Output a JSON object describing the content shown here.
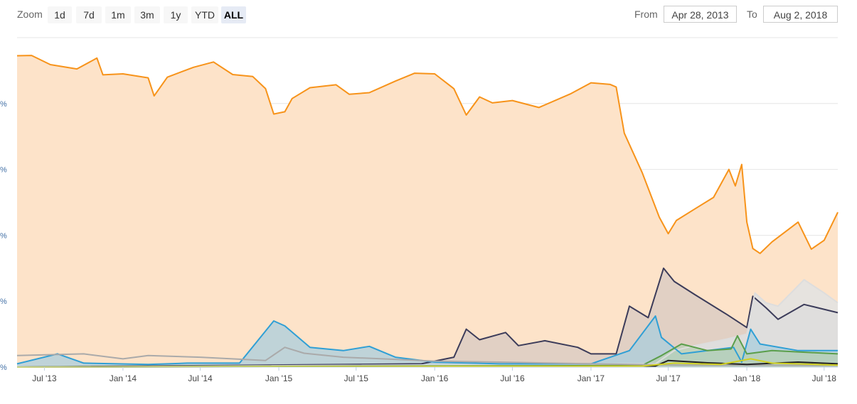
{
  "toolbar": {
    "zoom_label": "Zoom",
    "buttons": [
      "1d",
      "7d",
      "1m",
      "3m",
      "1y",
      "YTD",
      "ALL"
    ],
    "active_button": "ALL",
    "from_label": "From",
    "from_value": "Apr 28, 2013",
    "to_label": "To",
    "to_value": "Aug 2, 2018"
  },
  "chart_data": {
    "type": "area",
    "title": "",
    "xlabel": "",
    "ylabel": "",
    "xlim": [
      "2013-04-28",
      "2018-08-02"
    ],
    "ylim": [
      0,
      100
    ],
    "y_tick_labels": [
      "%",
      "%",
      "%",
      "%",
      "%"
    ],
    "x_tick_labels": [
      "Jul '13",
      "Jan '14",
      "Jul '14",
      "Jan '15",
      "Jul '15",
      "Jan '16",
      "Jul '16",
      "Jan '17",
      "Jul '17",
      "Jan '18",
      "Jul '18"
    ],
    "x_tick_dates": [
      "2013-07-01",
      "2014-01-01",
      "2014-07-01",
      "2015-01-01",
      "2015-07-01",
      "2016-01-01",
      "2016-07-01",
      "2017-01-01",
      "2017-07-01",
      "2018-01-01",
      "2018-07-01"
    ],
    "grid": true,
    "legend": "none",
    "series": [
      {
        "color": "#f7931a",
        "fill": "#fde3c9",
        "points": [
          [
            "2013-04-28",
            94.5
          ],
          [
            "2013-06-01",
            94.6
          ],
          [
            "2013-07-15",
            91.8
          ],
          [
            "2013-09-15",
            90.5
          ],
          [
            "2013-11-01",
            93.8
          ],
          [
            "2013-11-15",
            88.7
          ],
          [
            "2014-01-01",
            89.0
          ],
          [
            "2014-03-01",
            87.8
          ],
          [
            "2014-03-15",
            82.3
          ],
          [
            "2014-04-15",
            88.0
          ],
          [
            "2014-06-15",
            91.0
          ],
          [
            "2014-08-01",
            92.6
          ],
          [
            "2014-09-15",
            88.8
          ],
          [
            "2014-11-01",
            88.2
          ],
          [
            "2014-12-01",
            84.5
          ],
          [
            "2014-12-20",
            76.8
          ],
          [
            "2015-01-15",
            77.5
          ],
          [
            "2015-02-01",
            81.5
          ],
          [
            "2015-03-15",
            84.8
          ],
          [
            "2015-05-15",
            85.7
          ],
          [
            "2015-06-15",
            82.8
          ],
          [
            "2015-08-01",
            83.3
          ],
          [
            "2015-10-01",
            86.8
          ],
          [
            "2015-11-15",
            89.2
          ],
          [
            "2016-01-01",
            89.0
          ],
          [
            "2016-02-15",
            84.5
          ],
          [
            "2016-03-15",
            76.5
          ],
          [
            "2016-04-15",
            82.0
          ],
          [
            "2016-05-15",
            80.2
          ],
          [
            "2016-07-01",
            80.9
          ],
          [
            "2016-09-01",
            78.8
          ],
          [
            "2016-11-15",
            83.0
          ],
          [
            "2017-01-01",
            86.3
          ],
          [
            "2017-02-15",
            85.8
          ],
          [
            "2017-03-01",
            85.0
          ],
          [
            "2017-03-20",
            71.0
          ],
          [
            "2017-05-01",
            59.0
          ],
          [
            "2017-06-10",
            45.5
          ],
          [
            "2017-07-01",
            40.5
          ],
          [
            "2017-07-20",
            44.5
          ],
          [
            "2017-09-01",
            48.0
          ],
          [
            "2017-10-15",
            51.5
          ],
          [
            "2017-11-20",
            60.0
          ],
          [
            "2017-12-05",
            55.0
          ],
          [
            "2017-12-20",
            61.5
          ],
          [
            "2018-01-01",
            44.0
          ],
          [
            "2018-01-15",
            36.0
          ],
          [
            "2018-02-01",
            34.5
          ],
          [
            "2018-03-01",
            38.0
          ],
          [
            "2018-05-01",
            44.0
          ],
          [
            "2018-06-01",
            35.8
          ],
          [
            "2018-07-01",
            38.5
          ],
          [
            "2018-08-02",
            47.0
          ]
        ]
      },
      {
        "color": "#3c3c5a",
        "fill": "#d7c9c1",
        "points": [
          [
            "2013-04-28",
            0
          ],
          [
            "2015-12-01",
            1.0
          ],
          [
            "2016-02-15",
            3.0
          ],
          [
            "2016-03-15",
            11.5
          ],
          [
            "2016-04-15",
            8.3
          ],
          [
            "2016-06-15",
            10.5
          ],
          [
            "2016-07-15",
            6.5
          ],
          [
            "2016-09-15",
            8.0
          ],
          [
            "2016-12-01",
            6.0
          ],
          [
            "2017-01-01",
            4.0
          ],
          [
            "2017-03-01",
            4.0
          ],
          [
            "2017-04-01",
            18.5
          ],
          [
            "2017-05-15",
            15.0
          ],
          [
            "2017-06-20",
            30.0
          ],
          [
            "2017-07-15",
            26.0
          ],
          [
            "2017-09-01",
            22.0
          ],
          [
            "2017-11-15",
            16.0
          ],
          [
            "2018-01-01",
            12.0
          ],
          [
            "2018-01-15",
            21.5
          ],
          [
            "2018-02-15",
            18.0
          ],
          [
            "2018-03-15",
            14.5
          ],
          [
            "2018-05-15",
            19.0
          ],
          [
            "2018-08-02",
            16.5
          ]
        ]
      },
      {
        "color": "#dddddd",
        "fill": "#dde3e6",
        "points": [
          [
            "2013-04-28",
            0
          ],
          [
            "2017-06-01",
            1.0
          ],
          [
            "2017-07-15",
            5.0
          ],
          [
            "2017-09-01",
            6.5
          ],
          [
            "2017-11-15",
            8.5
          ],
          [
            "2018-01-01",
            10.0
          ],
          [
            "2018-01-20",
            22.5
          ],
          [
            "2018-02-15",
            19.5
          ],
          [
            "2018-03-15",
            18.5
          ],
          [
            "2018-05-15",
            26.5
          ],
          [
            "2018-07-01",
            22.5
          ],
          [
            "2018-08-02",
            19.5
          ]
        ]
      },
      {
        "color": "#2f9fd5",
        "fill": "#a9cddc",
        "points": [
          [
            "2013-04-28",
            1.0
          ],
          [
            "2013-08-01",
            4.0
          ],
          [
            "2013-10-01",
            1.2
          ],
          [
            "2014-03-01",
            0.8
          ],
          [
            "2014-06-01",
            1.2
          ],
          [
            "2014-10-01",
            1.2
          ],
          [
            "2014-12-20",
            14.0
          ],
          [
            "2015-01-15",
            12.5
          ],
          [
            "2015-03-15",
            6.0
          ],
          [
            "2015-06-01",
            5.0
          ],
          [
            "2015-08-01",
            6.3
          ],
          [
            "2015-10-01",
            3.0
          ],
          [
            "2016-01-01",
            1.5
          ],
          [
            "2016-06-01",
            1.0
          ],
          [
            "2017-01-01",
            1.0
          ],
          [
            "2017-04-01",
            5.0
          ],
          [
            "2017-06-01",
            15.5
          ],
          [
            "2017-06-15",
            9.0
          ],
          [
            "2017-08-01",
            4.0
          ],
          [
            "2017-10-01",
            5.0
          ],
          [
            "2017-12-01",
            6.0
          ],
          [
            "2017-12-20",
            1.5
          ],
          [
            "2018-01-10",
            11.5
          ],
          [
            "2018-02-01",
            7.0
          ],
          [
            "2018-05-01",
            5.0
          ],
          [
            "2018-08-02",
            5.0
          ]
        ]
      },
      {
        "color": "#5a9e4a",
        "fill": "#b7cfb1",
        "points": [
          [
            "2013-04-28",
            0
          ],
          [
            "2017-05-01",
            0.5
          ],
          [
            "2017-06-15",
            3.5
          ],
          [
            "2017-08-01",
            7.0
          ],
          [
            "2017-10-01",
            5.0
          ],
          [
            "2017-11-25",
            5.5
          ],
          [
            "2017-12-10",
            9.5
          ],
          [
            "2018-01-01",
            4.0
          ],
          [
            "2018-03-01",
            5.0
          ],
          [
            "2018-08-02",
            4.0
          ]
        ]
      },
      {
        "color": "#aaaaaa",
        "fill": "none",
        "points": [
          [
            "2013-04-28",
            3.5
          ],
          [
            "2013-10-01",
            4.0
          ],
          [
            "2014-01-01",
            2.5
          ],
          [
            "2014-03-01",
            3.5
          ],
          [
            "2014-07-01",
            3.0
          ],
          [
            "2014-12-01",
            2.0
          ],
          [
            "2015-01-15",
            6.0
          ],
          [
            "2015-03-01",
            4.2
          ],
          [
            "2015-06-01",
            3.0
          ],
          [
            "2015-09-01",
            2.5
          ],
          [
            "2016-01-01",
            1.8
          ],
          [
            "2016-06-01",
            1.5
          ],
          [
            "2017-01-01",
            1.0
          ],
          [
            "2017-08-01",
            0.6
          ],
          [
            "2018-08-02",
            0.5
          ]
        ]
      },
      {
        "color": "#222222",
        "fill": "none",
        "points": [
          [
            "2013-04-28",
            0
          ],
          [
            "2017-06-01",
            0.3
          ],
          [
            "2017-07-01",
            2.0
          ],
          [
            "2017-10-01",
            1.3
          ],
          [
            "2018-01-01",
            0.8
          ],
          [
            "2018-05-01",
            1.5
          ],
          [
            "2018-08-02",
            1.0
          ]
        ]
      },
      {
        "color": "#d0d020",
        "fill": "none",
        "points": [
          [
            "2013-04-28",
            0
          ],
          [
            "2017-05-01",
            0.3
          ],
          [
            "2017-07-15",
            1.2
          ],
          [
            "2017-11-01",
            0.8
          ],
          [
            "2018-01-10",
            2.5
          ],
          [
            "2018-03-01",
            1.2
          ],
          [
            "2018-08-02",
            0.6
          ]
        ]
      }
    ]
  }
}
